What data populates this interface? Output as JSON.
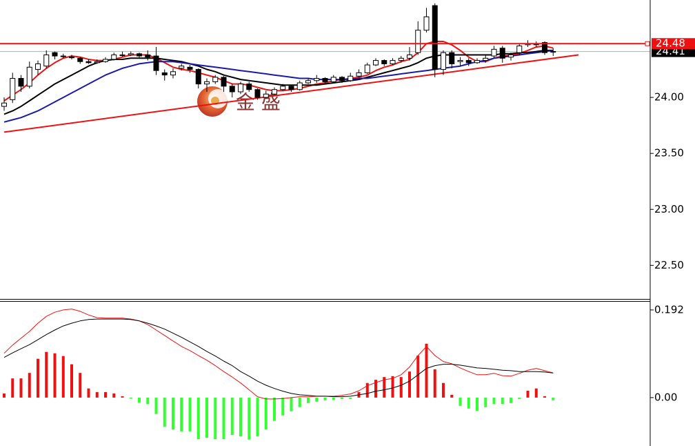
{
  "chart_data": [
    {
      "type": "candlestick",
      "open": [
        23.92,
        23.98,
        24.17,
        24.1,
        24.25,
        24.28,
        24.4,
        24.37,
        24.36,
        24.35,
        24.32,
        24.31,
        24.32,
        24.34,
        24.38,
        24.38,
        24.39,
        24.38,
        24.37,
        24.22,
        24.2,
        24.26,
        24.27,
        24.25,
        24.12,
        24.14,
        24.18,
        24.1,
        24.05,
        24.12,
        24.07,
        24.0,
        24.03,
        24.07,
        24.1,
        24.07,
        24.13,
        24.15,
        24.17,
        24.14,
        24.18,
        24.15,
        24.19,
        24.22,
        24.29,
        24.33,
        24.3,
        24.33,
        24.35,
        24.4,
        24.6,
        24.82,
        24.25,
        24.4,
        24.32,
        24.33,
        24.31,
        24.33,
        24.37,
        24.44,
        24.36,
        24.4,
        24.47,
        24.48,
        24.49,
        24.41
      ],
      "high": [
        24.0,
        24.22,
        24.2,
        24.32,
        24.33,
        24.42,
        24.41,
        24.39,
        24.38,
        24.36,
        24.34,
        24.34,
        24.36,
        24.4,
        24.41,
        24.41,
        24.4,
        24.42,
        24.45,
        24.25,
        24.26,
        24.3,
        24.29,
        24.26,
        24.17,
        24.2,
        24.19,
        24.12,
        24.14,
        24.14,
        24.08,
        24.06,
        24.09,
        24.12,
        24.11,
        24.15,
        24.17,
        24.2,
        24.18,
        24.2,
        24.19,
        24.22,
        24.25,
        24.31,
        24.35,
        24.34,
        24.35,
        24.37,
        24.45,
        24.68,
        24.8,
        24.84,
        24.42,
        24.42,
        24.36,
        24.35,
        24.35,
        24.38,
        24.46,
        24.46,
        24.4,
        24.48,
        24.51,
        24.5,
        24.5,
        24.44
      ],
      "low": [
        23.88,
        23.95,
        24.05,
        24.08,
        24.2,
        24.26,
        24.34,
        24.35,
        24.34,
        24.3,
        24.3,
        24.3,
        24.31,
        24.33,
        24.36,
        24.37,
        24.35,
        24.33,
        24.2,
        24.15,
        24.17,
        24.24,
        24.22,
        24.08,
        24.05,
        24.12,
        24.05,
        24.0,
        24.03,
        24.05,
        23.98,
        23.99,
        24.02,
        24.06,
        24.05,
        24.06,
        24.12,
        24.13,
        24.12,
        24.13,
        24.13,
        24.14,
        24.18,
        24.21,
        24.28,
        24.28,
        24.29,
        24.31,
        24.33,
        24.38,
        24.58,
        24.18,
        24.2,
        24.26,
        24.28,
        24.28,
        24.3,
        24.31,
        24.35,
        24.31,
        24.33,
        24.38,
        24.45,
        24.45,
        24.38,
        24.37
      ],
      "close": [
        23.95,
        24.17,
        24.1,
        24.27,
        24.3,
        24.38,
        24.37,
        24.37,
        24.36,
        24.32,
        24.31,
        24.32,
        24.34,
        24.38,
        24.38,
        24.39,
        24.37,
        24.36,
        24.24,
        24.2,
        24.23,
        24.28,
        24.25,
        24.12,
        24.14,
        24.18,
        24.1,
        24.05,
        24.12,
        24.07,
        24.0,
        24.03,
        24.07,
        24.1,
        24.07,
        24.13,
        24.15,
        24.17,
        24.14,
        24.18,
        24.15,
        24.19,
        24.22,
        24.29,
        24.33,
        24.3,
        24.33,
        24.35,
        24.38,
        24.6,
        24.72,
        24.25,
        24.4,
        24.3,
        24.33,
        24.31,
        24.33,
        24.35,
        24.43,
        24.35,
        24.38,
        24.46,
        24.48,
        24.47,
        24.4,
        24.41
      ],
      "series": [
        {
          "color": "#ee1111",
          "values": [
            23.97,
            24.02,
            24.07,
            24.13,
            24.2,
            24.26,
            24.31,
            24.35,
            24.37,
            24.36,
            24.34,
            24.33,
            24.33,
            24.34,
            24.36,
            24.38,
            24.38,
            24.38,
            24.35,
            24.31,
            24.27,
            24.25,
            24.24,
            24.22,
            24.2,
            24.18,
            24.15,
            24.12,
            24.12,
            24.11,
            24.09,
            24.07,
            24.06,
            24.06,
            24.07,
            24.08,
            24.1,
            24.12,
            24.13,
            24.15,
            24.16,
            24.17,
            24.18,
            24.2,
            24.24,
            24.27,
            24.29,
            24.32,
            24.34,
            24.4,
            24.48,
            24.5,
            24.5,
            24.47,
            24.42,
            24.36,
            24.32,
            24.32,
            24.35,
            24.37,
            24.38,
            24.39,
            24.42,
            24.45,
            24.46,
            24.44
          ]
        },
        {
          "color": "#000000",
          "values": [
            23.85,
            23.88,
            23.92,
            23.97,
            24.02,
            24.07,
            24.12,
            24.16,
            24.2,
            24.24,
            24.28,
            24.31,
            24.33,
            24.34,
            24.34,
            24.35,
            24.35,
            24.35,
            24.35,
            24.34,
            24.33,
            24.32,
            24.3,
            24.28,
            24.25,
            24.23,
            24.2,
            24.18,
            24.16,
            24.15,
            24.14,
            24.13,
            24.12,
            24.11,
            24.11,
            24.11,
            24.11,
            24.11,
            24.12,
            24.13,
            24.14,
            24.15,
            24.16,
            24.18,
            24.2,
            24.22,
            24.24,
            24.26,
            24.28,
            24.31,
            24.35,
            24.37,
            24.38,
            24.38,
            24.38,
            24.38,
            24.38,
            24.38,
            24.38,
            24.39,
            24.39,
            24.4,
            24.4,
            24.41,
            24.42,
            24.42
          ]
        },
        {
          "color": "#1a1aa6",
          "values": [
            23.78,
            23.8,
            23.82,
            23.85,
            23.88,
            23.92,
            23.96,
            24.0,
            24.04,
            24.08,
            24.12,
            24.16,
            24.2,
            24.23,
            24.26,
            24.28,
            24.3,
            24.31,
            24.32,
            24.32,
            24.32,
            24.31,
            24.3,
            24.29,
            24.28,
            24.27,
            24.26,
            24.25,
            24.24,
            24.23,
            24.22,
            24.21,
            24.2,
            24.19,
            24.18,
            24.17,
            24.17,
            24.16,
            24.16,
            24.16,
            24.16,
            24.16,
            24.17,
            24.17,
            24.18,
            24.19,
            24.2,
            24.21,
            24.22,
            24.23,
            24.24,
            24.25,
            24.26,
            24.27,
            24.28,
            24.3,
            24.32,
            24.33,
            24.35,
            24.36,
            24.37,
            24.38,
            24.39,
            24.4,
            24.41,
            24.42
          ]
        }
      ],
      "ylim": [
        22.2,
        24.87
      ],
      "yticks": [
        {
          "value": 22.5,
          "label": "22.50"
        },
        {
          "value": 23,
          "label": "23.00"
        },
        {
          "value": 23.5,
          "label": "23.50"
        },
        {
          "value": 24,
          "label": "24.00"
        }
      ],
      "last_price": 24.41,
      "hline": 24.48,
      "hline_color": "#ee1111",
      "trendline": {
        "x": [
          0,
          68
        ],
        "y": [
          23.69,
          24.38
        ]
      },
      "watermark": "金 盛"
    },
    {
      "type": "macd",
      "histogram": [
        0.009,
        0.042,
        0.042,
        0.054,
        0.085,
        0.1,
        0.097,
        0.091,
        0.073,
        0.054,
        0.02,
        0.012,
        0.012,
        0.009,
        0.003,
        -0.002,
        -0.011,
        -0.014,
        -0.036,
        -0.064,
        -0.07,
        -0.074,
        -0.074,
        -0.091,
        -0.088,
        -0.091,
        -0.091,
        -0.082,
        -0.085,
        -0.092,
        -0.085,
        -0.07,
        -0.051,
        -0.039,
        -0.03,
        -0.021,
        -0.012,
        -0.009,
        -0.006,
        -0.005,
        -0.003,
        -0.003,
        0.012,
        0.032,
        0.039,
        0.045,
        0.047,
        0.045,
        0.057,
        0.092,
        0.118,
        0.062,
        0.032,
        0.006,
        -0.018,
        -0.024,
        -0.029,
        -0.021,
        -0.014,
        -0.014,
        -0.012,
        -0.003,
        0.015,
        0.02,
        0.003,
        -0.006
      ],
      "up_color": "#ee1111",
      "down_color": "#33ff33",
      "series": [
        {
          "color": "#ee1111",
          "values": [
            0.097,
            0.115,
            0.13,
            0.145,
            0.163,
            0.178,
            0.187,
            0.192,
            0.194,
            0.189,
            0.181,
            0.175,
            0.174,
            0.174,
            0.174,
            0.172,
            0.168,
            0.16,
            0.148,
            0.136,
            0.124,
            0.112,
            0.103,
            0.092,
            0.082,
            0.07,
            0.057,
            0.045,
            0.032,
            0.017,
            0.002,
            -0.003,
            -0.003,
            -0.002,
            0.0,
            0.002,
            0.002,
            0.003,
            0.003,
            0.003,
            0.005,
            0.008,
            0.015,
            0.026,
            0.033,
            0.039,
            0.042,
            0.05,
            0.067,
            0.092,
            0.112,
            0.092,
            0.079,
            0.074,
            0.065,
            0.057,
            0.05,
            0.05,
            0.053,
            0.048,
            0.047,
            0.053,
            0.06,
            0.064,
            0.059,
            0.054
          ]
        },
        {
          "color": "#000000",
          "values": [
            0.088,
            0.098,
            0.107,
            0.116,
            0.127,
            0.138,
            0.148,
            0.157,
            0.163,
            0.168,
            0.171,
            0.172,
            0.172,
            0.172,
            0.172,
            0.171,
            0.168,
            0.163,
            0.157,
            0.15,
            0.141,
            0.132,
            0.122,
            0.112,
            0.101,
            0.091,
            0.08,
            0.07,
            0.057,
            0.047,
            0.036,
            0.027,
            0.02,
            0.014,
            0.009,
            0.006,
            0.005,
            0.003,
            0.003,
            0.002,
            0.002,
            0.003,
            0.006,
            0.009,
            0.014,
            0.017,
            0.021,
            0.027,
            0.036,
            0.05,
            0.064,
            0.07,
            0.073,
            0.073,
            0.071,
            0.068,
            0.065,
            0.064,
            0.062,
            0.06,
            0.059,
            0.057,
            0.057,
            0.057,
            0.056,
            0.054
          ]
        }
      ],
      "ylim": [
        -0.106,
        0.21
      ],
      "yticks": [
        {
          "value": 0,
          "label": "0.00"
        },
        0.192
      ]
    }
  ]
}
